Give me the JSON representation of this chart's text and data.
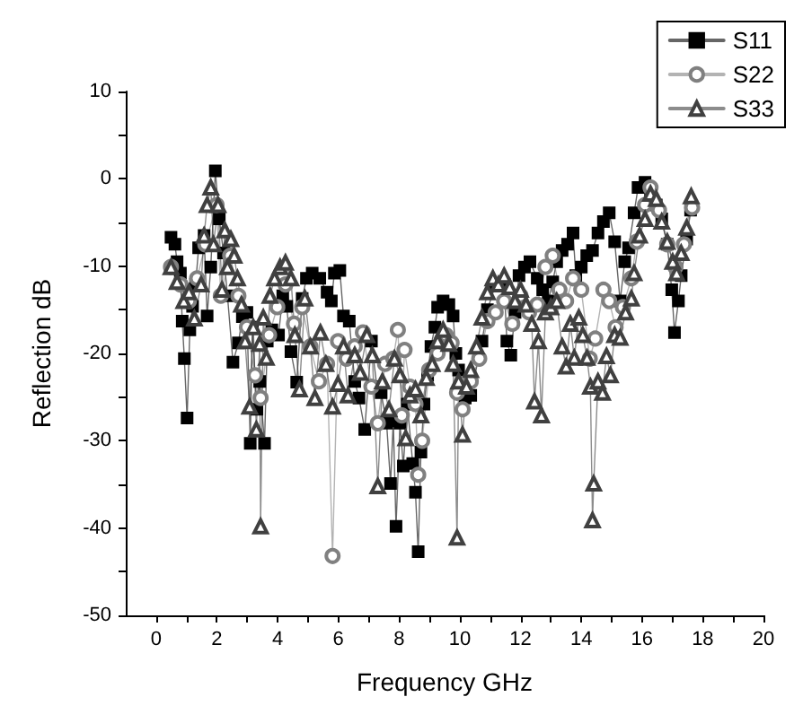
{
  "chart_data": {
    "type": "line",
    "xlabel": "Frequency GHz",
    "ylabel": "Reflection dB",
    "xlim": [
      -1,
      20
    ],
    "xticks": [
      0,
      {
        "value": 1,
        "label": null
      },
      2,
      {
        "value": 3,
        "label": null
      },
      4,
      {
        "value": 5,
        "label": null
      },
      6,
      {
        "value": 7,
        "label": null
      },
      8,
      {
        "value": 9,
        "label": null
      },
      10,
      {
        "value": 11,
        "label": null
      },
      12,
      {
        "value": 13,
        "label": null
      },
      14,
      {
        "value": 15,
        "label": null
      },
      16,
      {
        "value": 17,
        "label": null
      },
      18,
      {
        "value": 19,
        "label": null
      },
      20
    ],
    "ylim": [
      -50,
      10
    ],
    "yticks": [
      -50,
      {
        "value": -45,
        "label": null
      },
      -40,
      {
        "value": -35,
        "label": null
      },
      -30,
      {
        "value": -25,
        "label": null
      },
      -20,
      {
        "value": -15,
        "label": null
      },
      -10,
      {
        "value": -5,
        "label": null
      },
      0,
      {
        "value": 5,
        "label": null
      },
      10
    ],
    "grid": false,
    "legend": "top right",
    "line_style": "solid",
    "series": [
      {
        "name": "S11",
        "color": "#000000",
        "marker": "square",
        "x": [
          0.49,
          0.62,
          0.69,
          0.8,
          0.86,
          0.93,
          1.02,
          1.11,
          1.2,
          1.3,
          1.4,
          1.58,
          1.68,
          1.8,
          1.95,
          2.08,
          2.22,
          2.35,
          2.53,
          2.71,
          2.84,
          2.99,
          3.1,
          3.17,
          3.32,
          3.41,
          3.57,
          3.66,
          3.81,
          4.03,
          4.17,
          4.3,
          4.44,
          4.63,
          4.81,
          4.95,
          5.14,
          5.39,
          5.63,
          5.77,
          5.87,
          6.05,
          6.17,
          6.36,
          6.54,
          6.68,
          6.87,
          7.09,
          7.27,
          7.41,
          7.59,
          7.72,
          7.81,
          7.9,
          8.03,
          8.14,
          8.27,
          8.45,
          8.54,
          8.63,
          8.72,
          8.82,
          8.94,
          9.05,
          9.18,
          9.27,
          9.45,
          9.64,
          9.78,
          9.87,
          9.96,
          10.18,
          10.36,
          10.73,
          10.91,
          11.18,
          11.46,
          11.55,
          11.68,
          11.82,
          11.95,
          12.13,
          12.31,
          12.55,
          12.73,
          12.91,
          13.06,
          13.19,
          13.37,
          13.55,
          13.73,
          13.82,
          14,
          14.18,
          14.37,
          14.55,
          14.73,
          14.92,
          15.1,
          15.28,
          15.43,
          15.56,
          15.74,
          15.87,
          16.1,
          16.28,
          16.47,
          16.65,
          16.83,
          16.98,
          17.07,
          17.2,
          17.29,
          17.47,
          17.6
        ],
        "values": [
          -6.7,
          -7.5,
          -9.5,
          -10.8,
          -16.3,
          -20.6,
          -27.4,
          -17.3,
          -14.6,
          -12.1,
          -7.9,
          -6.5,
          -15.7,
          -10.1,
          0.9,
          -4.6,
          -8.5,
          -13.4,
          -21,
          -18.8,
          -15.8,
          -15.3,
          -30.3,
          -17,
          -26.4,
          -23.2,
          -30.3,
          -18.6,
          -17.3,
          -17.9,
          -13.4,
          -14.6,
          -19.8,
          -23.3,
          -13.7,
          -11.4,
          -10.8,
          -11.4,
          -13,
          -14,
          -10.8,
          -10.5,
          -15.7,
          -16.3,
          -23.2,
          -25.1,
          -28.7,
          -18.6,
          -23.8,
          -24.5,
          -28,
          -34.9,
          -27.7,
          -39.8,
          -28,
          -32.9,
          -25.8,
          -32.6,
          -35.9,
          -42.7,
          -31.3,
          -25.8,
          -22.5,
          -19.2,
          -17,
          -14.7,
          -14,
          -14.4,
          -15.7,
          -20,
          -21.9,
          -25.1,
          -24.8,
          -18.6,
          -15,
          -12.1,
          -12.1,
          -18.6,
          -20.2,
          -15.3,
          -11.1,
          -10.1,
          -9.5,
          -11.4,
          -12.7,
          -14,
          -11.8,
          -9.5,
          -8.2,
          -7.5,
          -6.2,
          -11.1,
          -10.1,
          -8.8,
          -8.2,
          -6.2,
          -4.9,
          -3.9,
          -7.2,
          -14,
          -9.5,
          -7.9,
          -3.9,
          -1,
          -0.4,
          -1.7,
          -3,
          -4.6,
          -7.5,
          -12.7,
          -17.6,
          -14,
          -11.1,
          -6.9,
          -3.6
        ]
      },
      {
        "name": "S22",
        "color": "#808080",
        "marker": "circle",
        "x": [
          0.49,
          0.8,
          1.08,
          1.35,
          1.62,
          1.99,
          2.13,
          2.44,
          2.71,
          2.99,
          3.26,
          3.44,
          3.72,
          3.99,
          4.26,
          4.54,
          4.81,
          5.08,
          5.36,
          5.63,
          5.81,
          5.99,
          6.27,
          6.54,
          6.81,
          7.09,
          7.3,
          7.54,
          7.81,
          7.96,
          8.09,
          8.18,
          8.36,
          8.54,
          8.63,
          8.76,
          8.99,
          9.27,
          9.54,
          9.73,
          9.91,
          10.09,
          10.36,
          10.64,
          10.91,
          11.18,
          11.46,
          11.73,
          12,
          12.28,
          12.55,
          12.82,
          13.06,
          13.28,
          13.5,
          13.73,
          14,
          14.28,
          14.46,
          14.73,
          14.92,
          15.13,
          15.37,
          15.65,
          15.83,
          16.1,
          16.28,
          16.56,
          16.83,
          17.1,
          17.38,
          17.65
        ],
        "values": [
          -10.1,
          -12.1,
          -14,
          -11.4,
          -7.5,
          -3,
          -13.4,
          -8.8,
          -13.4,
          -17,
          -22.5,
          -25.1,
          -17.9,
          -14.7,
          -12.1,
          -16.6,
          -14.7,
          -19.2,
          -23.2,
          -21.2,
          -43.2,
          -18.6,
          -20.6,
          -19.2,
          -17.6,
          -23.8,
          -28,
          -21.2,
          -20.6,
          -17.3,
          -27.1,
          -19.6,
          -23.8,
          -25.8,
          -33.9,
          -30,
          -21.9,
          -20,
          -17.9,
          -18.8,
          -24.5,
          -26.4,
          -23.2,
          -20.6,
          -16.3,
          -15.3,
          -14,
          -16.6,
          -13.4,
          -15.3,
          -14.4,
          -10.1,
          -8.8,
          -12.7,
          -14,
          -11.4,
          -12.7,
          -20.6,
          -18.3,
          -12.7,
          -14,
          -17,
          -14.7,
          -11.4,
          -7.2,
          -3,
          -1,
          -3.6,
          -7.5,
          -10.1,
          -7.5,
          -3.3
        ]
      },
      {
        "name": "S33",
        "color": "#404040",
        "marker": "triangle",
        "x": [
          0.49,
          0.69,
          0.91,
          1.08,
          1.26,
          1.48,
          1.58,
          1.68,
          1.8,
          1.89,
          2.04,
          2.17,
          2.26,
          2.35,
          2.46,
          2.57,
          2.68,
          2.81,
          2.93,
          3.08,
          3.2,
          3.3,
          3.41,
          3.44,
          3.53,
          3.63,
          3.75,
          3.9,
          4.08,
          4.26,
          4.44,
          4.57,
          4.72,
          4.9,
          5.08,
          5.23,
          5.41,
          5.59,
          5.81,
          5.99,
          6.17,
          6.32,
          6.54,
          6.72,
          6.94,
          7.12,
          7.3,
          7.45,
          7.67,
          7.85,
          8.03,
          8.22,
          8.36,
          8.54,
          8.72,
          8.9,
          9.09,
          9.27,
          9.45,
          9.64,
          9.78,
          9.91,
          9.96,
          10.09,
          10.22,
          10.36,
          10.55,
          10.73,
          10.91,
          11.09,
          11.27,
          11.46,
          11.64,
          11.82,
          12,
          12.18,
          12.37,
          12.46,
          12.59,
          12.69,
          12.82,
          13,
          13.19,
          13.37,
          13.5,
          13.64,
          13.77,
          13.92,
          14.05,
          14.19,
          14.3,
          14.37,
          14.41,
          14.55,
          14.7,
          14.83,
          14.96,
          15.1,
          15.28,
          15.46,
          15.65,
          15.74,
          15.92,
          16.1,
          16.28,
          16.47,
          16.65,
          16.83,
          17.01,
          17.14,
          17.29,
          17.47,
          17.62
        ],
        "values": [
          -10.1,
          -11.8,
          -14,
          -13,
          -16,
          -12.1,
          -6.5,
          -3,
          -1,
          -7.5,
          -3,
          -12.7,
          -5.9,
          -10.1,
          -6.9,
          -8.8,
          -11.4,
          -14.4,
          -18.6,
          -26.1,
          -17,
          -28.7,
          -18.9,
          -39.8,
          -15.9,
          -20.5,
          -13.4,
          -11.4,
          -10.1,
          -9.6,
          -11.4,
          -17.9,
          -24.1,
          -13.7,
          -19.2,
          -25.1,
          -17.6,
          -21.2,
          -26.1,
          -23.5,
          -19.2,
          -24.8,
          -20.2,
          -22.2,
          -17.9,
          -20.2,
          -35.2,
          -23.2,
          -26.4,
          -20.6,
          -22.5,
          -29.7,
          -24.8,
          -24.1,
          -27.1,
          -22.8,
          -21.2,
          -18.6,
          -17.3,
          -18.9,
          -21.2,
          -41.1,
          -23.2,
          -29.3,
          -23.8,
          -21.9,
          -19.2,
          -15.9,
          -13,
          -11.4,
          -12.1,
          -11.1,
          -12.4,
          -14,
          -12.7,
          -14.4,
          -16.6,
          -25.5,
          -18.6,
          -27.1,
          -15.3,
          -14.7,
          -14,
          -19.2,
          -21.5,
          -16.6,
          -20.5,
          -15.9,
          -17.9,
          -20.5,
          -23.8,
          -39.1,
          -34.9,
          -23.2,
          -24.5,
          -20.3,
          -22.5,
          -17.9,
          -18.2,
          -15.3,
          -13.7,
          -10.8,
          -6.5,
          -4.6,
          -1.7,
          -2.3,
          -4.9,
          -7.2,
          -9.5,
          -10.8,
          -8.5,
          -5.6,
          -2
        ]
      }
    ]
  }
}
